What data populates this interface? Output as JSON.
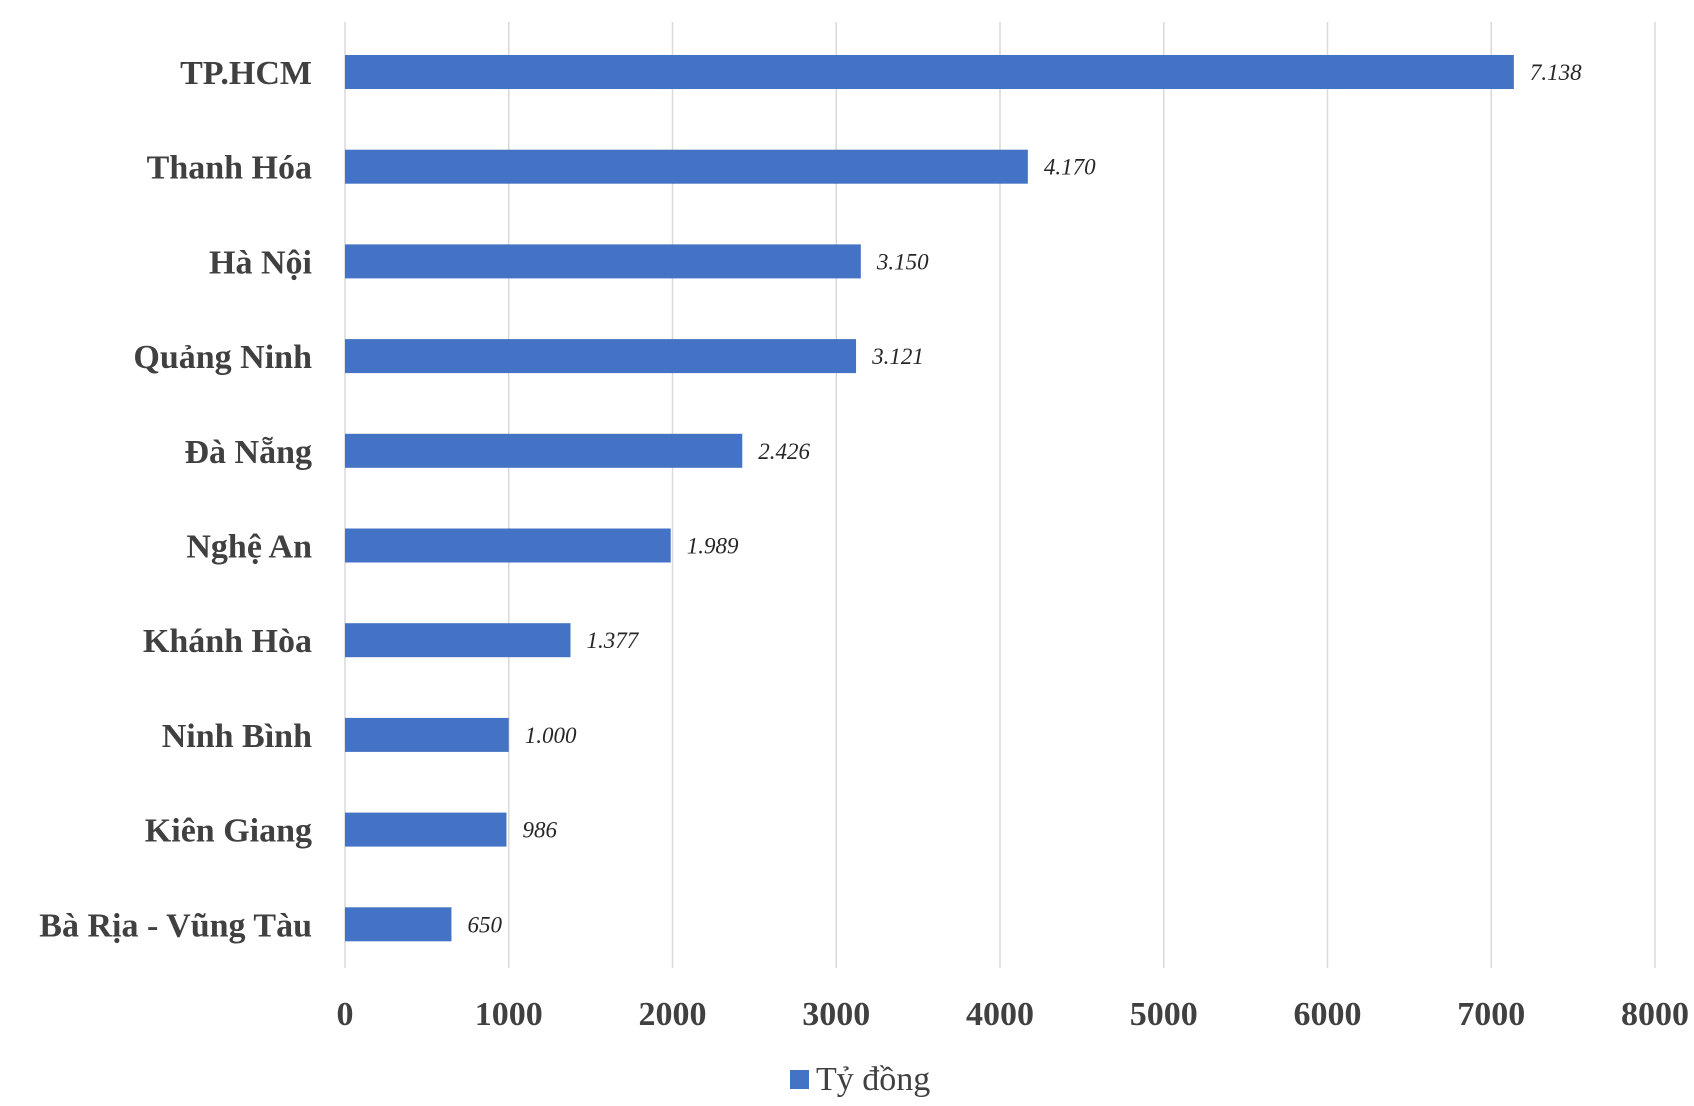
{
  "chart_data": {
    "type": "bar",
    "orientation": "horizontal",
    "categories": [
      "TP.HCM",
      "Thanh Hóa",
      "Hà Nội",
      "Quảng Ninh",
      "Đà Nẵng",
      "Nghệ An",
      "Khánh Hòa",
      "Ninh Bình",
      "Kiên Giang",
      "Bà Rịa - Vũng Tàu"
    ],
    "series": [
      {
        "name": "Tỷ đồng",
        "values": [
          7138,
          4170,
          3150,
          3121,
          2426,
          1989,
          1377,
          1000,
          986,
          650
        ],
        "data_labels": [
          "7.138",
          "4.170",
          "3.150",
          "3.121",
          "2.426",
          "1.989",
          "1.377",
          "1.000",
          "986",
          "650"
        ],
        "color": "#4472c4"
      }
    ],
    "xlim": [
      0,
      8000
    ],
    "x_ticks": [
      "0",
      "1000",
      "2000",
      "3000",
      "4000",
      "5000",
      "6000",
      "7000",
      "8000"
    ],
    "grid": "vertical",
    "legend_position": "bottom"
  }
}
